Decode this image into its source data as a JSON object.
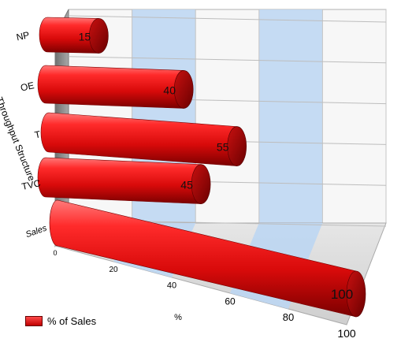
{
  "chart_data": {
    "type": "bar",
    "orientation": "horizontal",
    "three_d": true,
    "title": "",
    "xlabel": "%",
    "ylabel": "Throughput Structure",
    "categories": [
      "NP",
      "OE",
      "T",
      "TVC",
      "Sales"
    ],
    "series": [
      {
        "name": "% of Sales",
        "values": [
          15,
          40,
          55,
          45,
          100
        ]
      }
    ],
    "value_labels": [
      "15",
      "40",
      "55",
      "45",
      "100"
    ],
    "xlim": [
      0,
      100
    ],
    "xticks": [
      "0",
      "20",
      "40",
      "60",
      "80",
      "100"
    ],
    "grid": true,
    "legend_position": "bottom-left",
    "colors": {
      "bar": "#e01010",
      "bar_dark": "#8a0000",
      "band": "#bcd6f2",
      "wall_side": "#8c8c8c",
      "wall_back": "#f7f7f7"
    }
  }
}
